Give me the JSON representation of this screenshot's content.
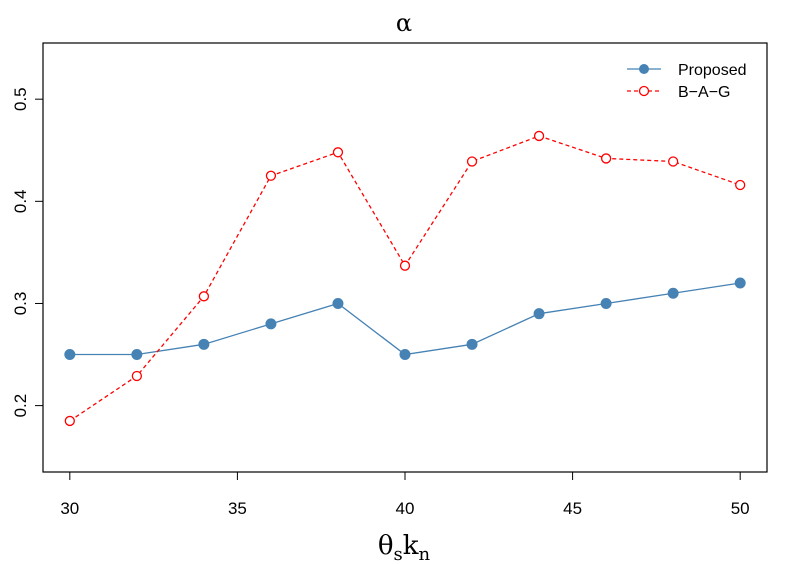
{
  "chart_data": {
    "type": "line",
    "title": "α",
    "xlabel": {
      "base": "θ",
      "sub1": "s",
      "mid": "k",
      "sub2": "n"
    },
    "ylabel": "",
    "x": [
      30,
      32,
      34,
      36,
      38,
      40,
      42,
      44,
      46,
      48,
      50
    ],
    "xlim": [
      29.2,
      50.8
    ],
    "ylim": [
      0.135,
      0.555
    ],
    "xticks": [
      30,
      35,
      40,
      45,
      50
    ],
    "yticks": [
      0.2,
      0.3,
      0.4,
      0.5
    ],
    "ytick_labels": [
      "0.2",
      "0.3",
      "0.4",
      "0.5"
    ],
    "grid": false,
    "legend_position": "top-right",
    "series": [
      {
        "name": "Proposed",
        "color": "#4682b4",
        "line_style": "solid",
        "marker": "filled-circle",
        "values": [
          0.25,
          0.25,
          0.26,
          0.28,
          0.3,
          0.25,
          0.26,
          0.29,
          0.3,
          0.31,
          0.32
        ]
      },
      {
        "name": "B−A−G",
        "color": "#ff0000",
        "line_style": "dashed",
        "marker": "open-circle",
        "values": [
          0.185,
          0.229,
          0.307,
          0.425,
          0.448,
          0.337,
          0.439,
          0.464,
          0.442,
          0.439,
          0.416
        ]
      }
    ]
  }
}
